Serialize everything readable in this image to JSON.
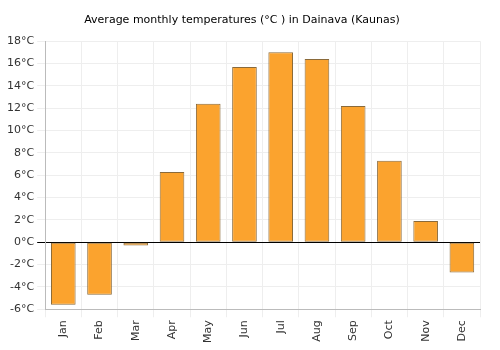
{
  "chart_data": {
    "type": "bar",
    "title": "Average monthly temperatures (°C ) in Dainava (Kaunas)",
    "categories": [
      "Jan",
      "Feb",
      "Mar",
      "Apr",
      "May",
      "Jun",
      "Jul",
      "Aug",
      "Sep",
      "Oct",
      "Nov",
      "Dec"
    ],
    "values": [
      -5.6,
      -4.7,
      -0.3,
      6.3,
      12.4,
      15.7,
      17.0,
      16.4,
      12.2,
      7.3,
      1.9,
      -2.7
    ],
    "color": "#fba32e",
    "ylim": [
      -6,
      18
    ],
    "yticks": [
      {
        "value": -6,
        "label": "-6°C"
      },
      {
        "value": -4,
        "label": "-4°C"
      },
      {
        "value": -2,
        "label": "-2°C"
      },
      {
        "value": 0,
        "label": "0°C"
      },
      {
        "value": 2,
        "label": "2°C"
      },
      {
        "value": 4,
        "label": "4°C"
      },
      {
        "value": 6,
        "label": "6°C"
      },
      {
        "value": 8,
        "label": "8°C"
      },
      {
        "value": 10,
        "label": "10°C"
      },
      {
        "value": 12,
        "label": "12°C"
      },
      {
        "value": 14,
        "label": "14°C"
      },
      {
        "value": 16,
        "label": "16°C"
      },
      {
        "value": 18,
        "label": "18°C"
      }
    ],
    "grid": true
  }
}
